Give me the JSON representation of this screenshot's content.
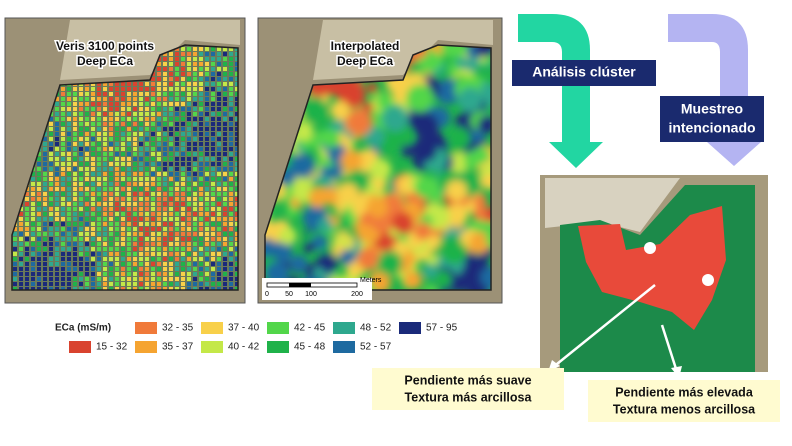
{
  "panels": [
    {
      "title_lines": [
        "Veris 3100 points",
        "Deep ECa"
      ]
    },
    {
      "title_lines": [
        "Interpolated",
        "Deep ECa"
      ],
      "scale_bar": {
        "ticks": [
          "0",
          "50",
          "100",
          "200"
        ],
        "unit": "Meters"
      }
    }
  ],
  "legend": {
    "title": "ECa (mS/m)",
    "items": [
      {
        "label": "15 - 32",
        "color": "#d9432f"
      },
      {
        "label": "32 - 35",
        "color": "#f07a3a"
      },
      {
        "label": "35 - 37",
        "color": "#f5a431"
      },
      {
        "label": "37 - 40",
        "color": "#f8d04a"
      },
      {
        "label": "40 - 42",
        "color": "#c4e848"
      },
      {
        "label": "42 - 45",
        "color": "#52d64a"
      },
      {
        "label": "45 - 48",
        "color": "#1fb24a"
      },
      {
        "label": "48 - 52",
        "color": "#2ea88e"
      },
      {
        "label": "52 - 57",
        "color": "#1e6aa0"
      },
      {
        "label": "57 - 95",
        "color": "#1a2a7a"
      }
    ]
  },
  "steps": [
    {
      "lines": [
        "Análisis clúster"
      ],
      "color": "#22d6a2"
    },
    {
      "lines": [
        "Muestreo",
        "intencionado"
      ],
      "color": "#b4b4f2"
    }
  ],
  "clusters": {
    "colors": [
      "#1c8a4a",
      "#e84a3a"
    ]
  },
  "callouts": [
    {
      "lines": [
        "Pendiente más suave",
        "Textura más arcillosa"
      ]
    },
    {
      "lines": [
        "Pendiente más elevada",
        "Textura menos arcillosa"
      ]
    }
  ]
}
